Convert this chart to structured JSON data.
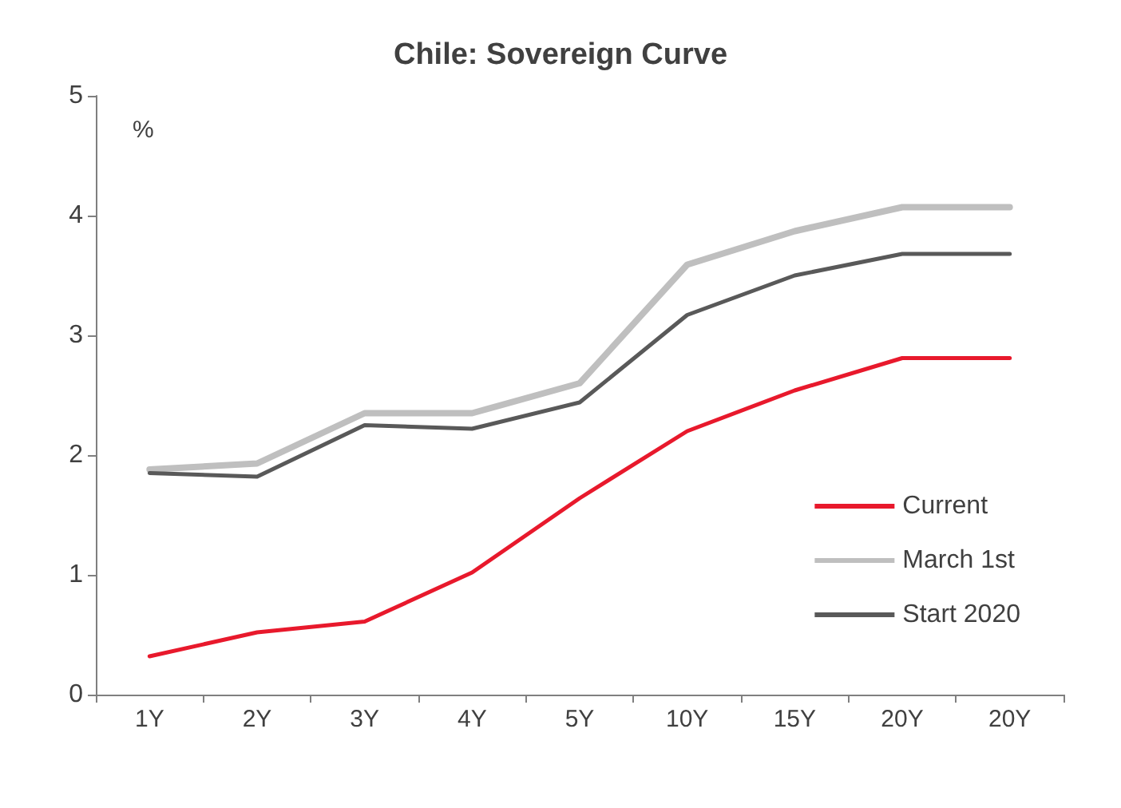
{
  "chart_data": {
    "type": "line",
    "title": "Chile: Sovereign Curve",
    "ylabel": "%",
    "categories": [
      "1Y",
      "2Y",
      "3Y",
      "4Y",
      "5Y",
      "10Y",
      "15Y",
      "20Y",
      "20Y"
    ],
    "series": [
      {
        "name": "Current",
        "color": "#e8192c",
        "values": [
          0.32,
          0.52,
          0.61,
          1.02,
          1.64,
          2.2,
          2.54,
          2.81,
          2.81
        ]
      },
      {
        "name": "March 1st",
        "color": "#bfbfbf",
        "values": [
          1.88,
          1.93,
          2.35,
          2.35,
          2.6,
          3.59,
          3.87,
          4.07,
          4.07
        ]
      },
      {
        "name": "Start 2020",
        "color": "#595959",
        "values": [
          1.85,
          1.82,
          2.25,
          2.22,
          2.44,
          3.17,
          3.5,
          3.68,
          3.68
        ]
      }
    ],
    "ylim": [
      0,
      5
    ],
    "yticks": [
      0,
      1,
      2,
      3,
      4,
      5
    ],
    "grid": false,
    "legend": "bottom right",
    "marker": "none",
    "line_style": "solid"
  }
}
